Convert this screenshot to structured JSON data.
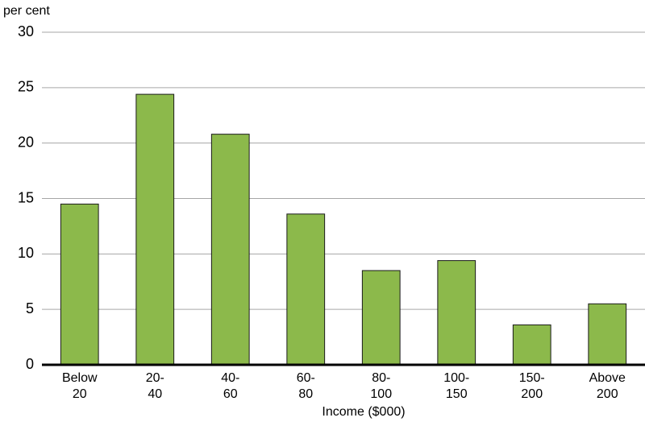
{
  "chart_data": {
    "type": "bar",
    "y_label": "per cent",
    "x_label": "Income ($000)",
    "categories": [
      [
        "Below",
        "20"
      ],
      [
        "20-",
        "40"
      ],
      [
        "40-",
        "60"
      ],
      [
        "60-",
        "80"
      ],
      [
        "80-",
        "100"
      ],
      [
        "100-",
        "150"
      ],
      [
        "150-",
        "200"
      ],
      [
        "Above",
        "200"
      ]
    ],
    "values": [
      14.5,
      24.4,
      20.8,
      13.6,
      8.5,
      9.4,
      3.6,
      5.5
    ],
    "color": "#8cb94b",
    "ylim": [
      0,
      30
    ],
    "yticks": [
      0,
      5,
      10,
      15,
      20,
      25,
      30
    ],
    "grid": true
  }
}
